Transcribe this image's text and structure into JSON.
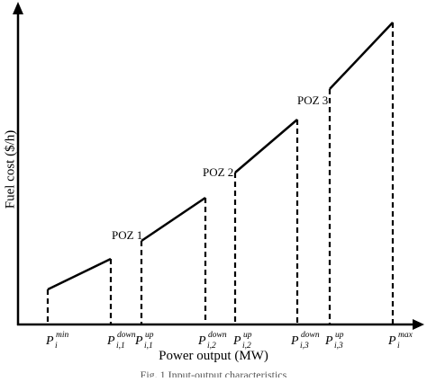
{
  "axes": {
    "x_title": "Power output (MW)",
    "y_title": "Fuel cost ($/h)"
  },
  "caption": "Fig. 1 Input-output characteristics",
  "zones": [
    {
      "label": "POZ 1"
    },
    {
      "label": "POZ 2"
    },
    {
      "label": "POZ 3"
    }
  ],
  "ticks": [
    {
      "main": "P",
      "sup": "min",
      "sub": "i"
    },
    {
      "main": "P",
      "sup": "down",
      "sub": "i,1"
    },
    {
      "main": "P",
      "sup": "up",
      "sub": "i,1"
    },
    {
      "main": "P",
      "sup": "down",
      "sub": "i,2"
    },
    {
      "main": "P",
      "sup": "up",
      "sub": "i,2"
    },
    {
      "main": "P",
      "sup": "down",
      "sub": "i,3"
    },
    {
      "main": "P",
      "sup": "up",
      "sub": "i,3"
    },
    {
      "main": "P",
      "sup": "max",
      "sub": "i"
    }
  ]
}
